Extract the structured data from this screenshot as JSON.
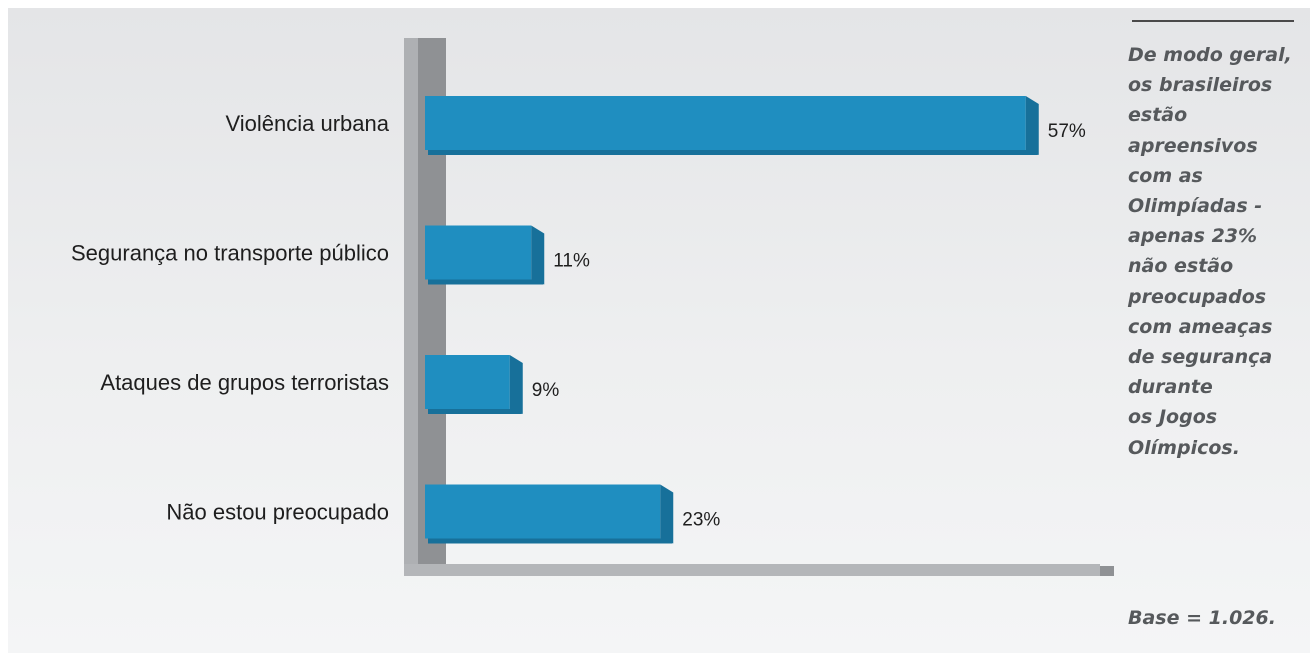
{
  "chart_data": {
    "type": "bar",
    "orientation": "horizontal",
    "categories": [
      "Violência urbana",
      "Segurança no transporte público",
      "Ataques de grupos terroristas",
      "Não estou preocupado"
    ],
    "values": [
      57,
      11,
      9,
      23
    ],
    "value_labels": [
      "57%",
      "11%",
      "9%",
      "23%"
    ],
    "xlim": [
      0,
      100
    ],
    "grid": false,
    "bar_color": "#1f8ec0",
    "bar_shade_color": "#17709a"
  },
  "caption": "De modo geral,\nos brasileiros\nestão\napreensivos\ncom as\nOlimpíadas -\napenas 23%\nnão estão\npreocupados\ncom ameaças\nde segurança\ndurante\nos Jogos\nOlímpicos.",
  "base_note": "Base = 1.026."
}
